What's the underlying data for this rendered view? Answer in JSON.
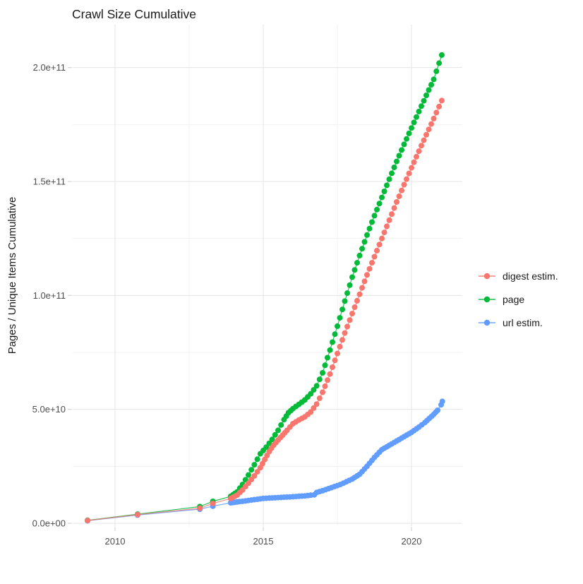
{
  "chart_data": {
    "type": "scatter",
    "title": "Crawl Size Cumulative",
    "xlabel": "",
    "ylabel": "Pages / Unique Items Cumulative",
    "value_unit": "1e9 (billions); y tick labels shown in scientific notation",
    "grid": "major and minor gridlines on, light gray, white panel",
    "x_axis": {
      "range": [
        2008.571,
        2021.714
      ],
      "ticks": [
        {
          "label": "2010",
          "value": 2010
        },
        {
          "label": "2015",
          "value": 2015
        },
        {
          "label": "2020",
          "value": 2020
        }
      ],
      "minor": [
        2012.5,
        2017.5
      ]
    },
    "y_axis": {
      "range": [
        -1.24,
        218.8
      ],
      "ticks": [
        {
          "label": "0.0e+00",
          "value": 0
        },
        {
          "label": "5.0e+10",
          "value": 50
        },
        {
          "label": "1.0e+11",
          "value": 100
        },
        {
          "label": "1.5e+11",
          "value": 150
        },
        {
          "label": "2.0e+11",
          "value": 200
        }
      ],
      "minor": [
        25,
        75,
        125,
        175
      ]
    },
    "legend": {
      "position": "right",
      "items": [
        "digest estim.",
        "page",
        "url estim."
      ]
    },
    "series": [
      {
        "name": "digest estim.",
        "color": "#F8766D",
        "points": [
          [
            2009.07,
            1.2
          ],
          [
            2010.76,
            3.8
          ],
          [
            2012.86,
            6.6
          ],
          [
            2013.3,
            8.7
          ],
          [
            2013.9,
            10.9
          ],
          [
            2014.12,
            12.4
          ],
          [
            2014.3,
            14.6
          ],
          [
            2014.5,
            17.6
          ],
          [
            2014.7,
            20.8
          ],
          [
            2014.9,
            24.4
          ],
          [
            2015.05,
            28.0
          ],
          [
            2015.2,
            31.5
          ],
          [
            2015.35,
            34.3
          ],
          [
            2015.5,
            36.5
          ],
          [
            2015.65,
            38.6
          ],
          [
            2015.8,
            40.8
          ],
          [
            2016.0,
            43.7
          ],
          [
            2016.2,
            45.3
          ],
          [
            2016.4,
            46.7
          ],
          [
            2016.6,
            48.8
          ],
          [
            2016.8,
            52.3
          ],
          [
            2017.0,
            57.5
          ],
          [
            2017.25,
            65.5
          ],
          [
            2017.5,
            74.5
          ],
          [
            2017.75,
            83.5
          ],
          [
            2018.0,
            92.0
          ],
          [
            2018.25,
            100.5
          ],
          [
            2018.5,
            109.0
          ],
          [
            2018.75,
            117.0
          ],
          [
            2019.0,
            125.0
          ],
          [
            2019.25,
            133.0
          ],
          [
            2019.5,
            141.0
          ],
          [
            2019.75,
            148.6
          ],
          [
            2020.0,
            156.0
          ],
          [
            2020.25,
            163.3
          ],
          [
            2020.5,
            170.5
          ],
          [
            2020.75,
            177.6
          ],
          [
            2021.02,
            185.5
          ]
        ]
      },
      {
        "name": "page",
        "color": "#00BA38",
        "points": [
          [
            2009.07,
            1.3
          ],
          [
            2010.76,
            4.0
          ],
          [
            2012.86,
            7.3
          ],
          [
            2013.3,
            9.6
          ],
          [
            2013.9,
            11.8
          ],
          [
            2014.12,
            13.8
          ],
          [
            2014.3,
            17.0
          ],
          [
            2014.5,
            21.2
          ],
          [
            2014.7,
            25.7
          ],
          [
            2014.9,
            30.5
          ],
          [
            2015.1,
            33.4
          ],
          [
            2015.3,
            36.8
          ],
          [
            2015.5,
            40.8
          ],
          [
            2015.7,
            45.5
          ],
          [
            2015.85,
            48.5
          ],
          [
            2016.0,
            50.3
          ],
          [
            2016.2,
            52.2
          ],
          [
            2016.4,
            54.1
          ],
          [
            2016.6,
            56.8
          ],
          [
            2016.8,
            60.3
          ],
          [
            2017.0,
            66.0
          ],
          [
            2017.25,
            76.0
          ],
          [
            2017.5,
            86.5
          ],
          [
            2017.75,
            97.5
          ],
          [
            2018.0,
            108.0
          ],
          [
            2018.25,
            117.5
          ],
          [
            2018.5,
            126.5
          ],
          [
            2018.75,
            135.0
          ],
          [
            2019.0,
            143.0
          ],
          [
            2019.25,
            151.0
          ],
          [
            2019.5,
            158.8
          ],
          [
            2019.75,
            166.3
          ],
          [
            2020.0,
            173.5
          ],
          [
            2020.25,
            180.7
          ],
          [
            2020.5,
            187.8
          ],
          [
            2020.75,
            194.8
          ],
          [
            2021.02,
            205.5
          ]
        ]
      },
      {
        "name": "url estim.",
        "color": "#619CFF",
        "points": [
          [
            2009.07,
            1.1
          ],
          [
            2010.76,
            3.6
          ],
          [
            2012.86,
            6.2
          ],
          [
            2013.3,
            7.5
          ],
          [
            2013.9,
            9.0
          ],
          [
            2014.2,
            9.5
          ],
          [
            2014.4,
            9.8
          ],
          [
            2014.6,
            10.2
          ],
          [
            2014.8,
            10.55
          ],
          [
            2015.0,
            10.9
          ],
          [
            2015.2,
            11.05
          ],
          [
            2015.4,
            11.2
          ],
          [
            2015.6,
            11.35
          ],
          [
            2015.8,
            11.5
          ],
          [
            2016.0,
            11.65
          ],
          [
            2016.2,
            11.85
          ],
          [
            2016.4,
            12.0
          ],
          [
            2016.6,
            12.3
          ],
          [
            2016.72,
            12.5
          ],
          [
            2016.8,
            13.5
          ],
          [
            2017.0,
            14.3
          ],
          [
            2017.2,
            15.2
          ],
          [
            2017.4,
            16.1
          ],
          [
            2017.6,
            17.0
          ],
          [
            2017.8,
            18.2
          ],
          [
            2018.0,
            19.4
          ],
          [
            2018.25,
            21.5
          ],
          [
            2018.5,
            25.0
          ],
          [
            2018.75,
            28.9
          ],
          [
            2019.0,
            32.3
          ],
          [
            2019.25,
            34.2
          ],
          [
            2019.5,
            36.1
          ],
          [
            2019.75,
            38.0
          ],
          [
            2020.0,
            39.9
          ],
          [
            2020.25,
            42.2
          ],
          [
            2020.45,
            44.2
          ],
          [
            2020.6,
            46.0
          ],
          [
            2020.75,
            47.8
          ],
          [
            2020.88,
            49.6
          ],
          [
            2021.0,
            52.0
          ],
          [
            2021.04,
            53.5
          ]
        ]
      }
    ]
  },
  "theme": {
    "background": "#FFFFFF",
    "grid_major": "#E4E4E4",
    "grid_minor": "#F1F1F1",
    "tick_mark": "#D6D6D6",
    "tick_text": "#4D4D4D",
    "title_text": "#1A1A1A"
  }
}
